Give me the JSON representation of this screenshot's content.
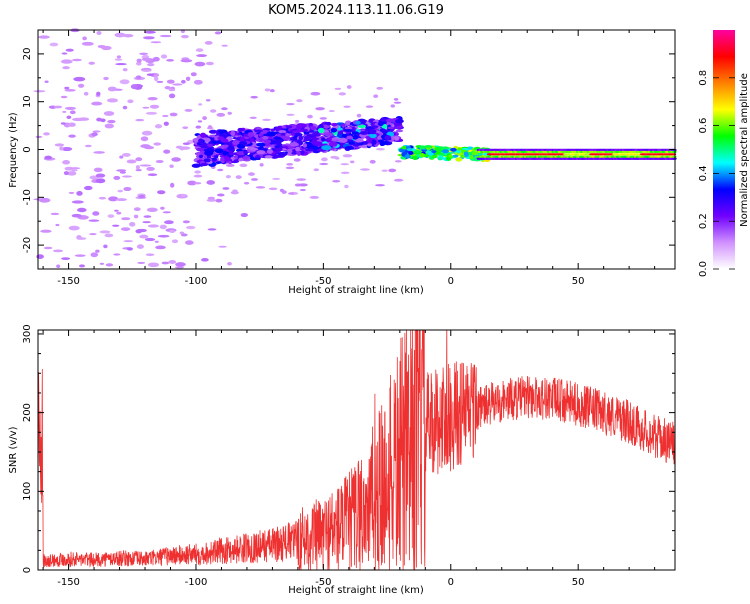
{
  "title": "KOM5.2024.113.11.06.G19",
  "chart_data": [
    {
      "type": "heatmap",
      "title": "KOM5.2024.113.11.06.G19",
      "xlabel": "Height of straight line (km)",
      "ylabel": "Frequency (Hz)",
      "xlim": [
        -162,
        88
      ],
      "ylim": [
        -25,
        25
      ],
      "xticks": [
        -150,
        -100,
        -50,
        0,
        50
      ],
      "yticks": [
        -20,
        -10,
        0,
        10,
        20
      ],
      "colorbar": {
        "label": "Normalized spectral amplitude",
        "range": [
          0,
          1
        ],
        "ticks": [
          0.0,
          0.2,
          0.4,
          0.6,
          0.8
        ],
        "colors": [
          "#ffffff",
          "#d090ff",
          "#7000ff",
          "#0000ff",
          "#00ffff",
          "#00ff00",
          "#ffff00",
          "#ff8000",
          "#ff0000",
          "#ff00a0"
        ]
      },
      "description": "Scattered low-amplitude speckle across -162..-100 km at frequencies -25..25 Hz; a dense purple/blue band centered near 0 Hz from about -100 to -20 km that rises to roughly +5 Hz near -25 km; a narrow high-amplitude line at about -1 Hz from -20 km to 88 km (green/yellow near -10..15 km, red from 15 to 88 km).",
      "bands": [
        {
          "x": [
            -100,
            -20
          ],
          "y_center": [
            0,
            4
          ],
          "amplitude": 0.3
        },
        {
          "x": [
            -20,
            15
          ],
          "y_center": [
            -0.5,
            -1
          ],
          "amplitude": 0.6
        },
        {
          "x": [
            15,
            88
          ],
          "y_center": [
            -1,
            -1
          ],
          "amplitude": 0.9
        }
      ]
    },
    {
      "type": "line",
      "xlabel": "Height of straight line (km)",
      "ylabel": "SNR (v/v)",
      "xlim": [
        -162,
        88
      ],
      "ylim": [
        0,
        305
      ],
      "xticks": [
        -150,
        -100,
        -50,
        0,
        50
      ],
      "yticks": [
        0,
        100,
        200,
        300
      ],
      "color": "#ee3030",
      "x": [
        -160,
        -150,
        -140,
        -130,
        -120,
        -110,
        -100,
        -90,
        -80,
        -70,
        -60,
        -50,
        -40,
        -30,
        -25,
        -20,
        -15,
        -10,
        -5,
        0,
        10,
        20,
        30,
        40,
        50,
        60,
        70,
        80,
        88
      ],
      "y": [
        12,
        14,
        13,
        15,
        14,
        18,
        20,
        24,
        28,
        32,
        38,
        45,
        60,
        90,
        110,
        140,
        160,
        180,
        190,
        195,
        205,
        215,
        220,
        218,
        210,
        200,
        188,
        170,
        160
      ]
    }
  ]
}
